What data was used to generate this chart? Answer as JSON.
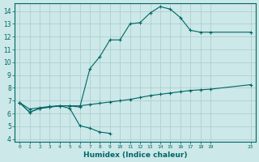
{
  "xlabel": "Humidex (Indice chaleur)",
  "bg_color": "#cce8e8",
  "grid_color": "#b0d0d0",
  "line_color": "#006666",
  "xlim": [
    -0.5,
    23.5
  ],
  "ylim": [
    3.8,
    14.6
  ],
  "yticks": [
    4,
    5,
    6,
    7,
    8,
    9,
    10,
    11,
    12,
    13,
    14
  ],
  "xticks": [
    0,
    1,
    2,
    3,
    4,
    5,
    6,
    7,
    8,
    9,
    10,
    11,
    12,
    13,
    14,
    15,
    16,
    17,
    18,
    19,
    23
  ],
  "xtick_labels": [
    "0",
    "1",
    "2",
    "3",
    "4",
    "5",
    "6",
    "7",
    "8",
    "9",
    "10",
    "11",
    "12",
    "13",
    "14",
    "15",
    "16",
    "17",
    "18",
    "19",
    "23"
  ],
  "curve_upper_x": [
    0,
    1,
    2,
    3,
    4,
    5,
    6,
    7,
    8,
    9,
    10,
    11,
    12,
    13,
    14,
    15,
    16,
    17,
    18,
    19,
    23
  ],
  "curve_upper_y": [
    6.85,
    6.1,
    6.4,
    6.5,
    6.6,
    6.6,
    6.5,
    9.5,
    10.45,
    11.75,
    11.75,
    13.0,
    13.1,
    13.85,
    14.35,
    14.15,
    13.5,
    12.5,
    12.35,
    12.35,
    12.35
  ],
  "curve_mid_x": [
    0,
    1,
    2,
    3,
    4,
    5,
    6,
    7,
    8,
    9,
    10,
    11,
    12,
    13,
    14,
    15,
    16,
    17,
    18,
    19,
    23
  ],
  "curve_mid_y": [
    6.85,
    6.35,
    6.45,
    6.55,
    6.6,
    6.6,
    6.6,
    6.7,
    6.8,
    6.9,
    7.0,
    7.1,
    7.25,
    7.4,
    7.5,
    7.6,
    7.7,
    7.8,
    7.85,
    7.9,
    8.25
  ],
  "curve_low_x": [
    0,
    1,
    2,
    3,
    4,
    5,
    6,
    7,
    8,
    9
  ],
  "curve_low_y": [
    6.85,
    6.1,
    6.4,
    6.5,
    6.6,
    6.4,
    5.05,
    4.85,
    4.55,
    4.45
  ]
}
